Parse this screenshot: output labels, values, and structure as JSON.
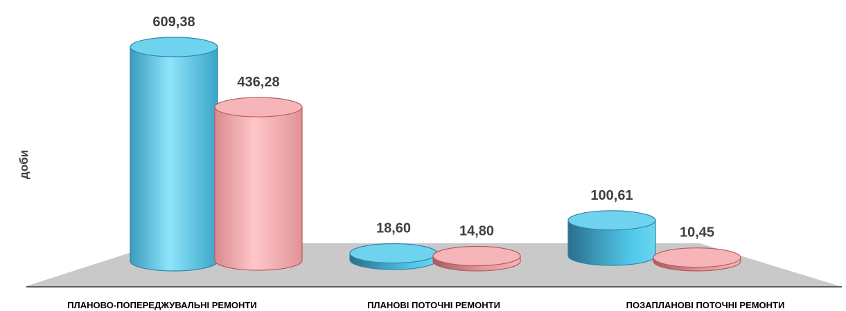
{
  "chart_data": {
    "type": "bar",
    "style": "3d-cylinder",
    "ylabel": "доби",
    "categories": [
      "ПЛАНОВО-ПОПЕРЕДЖУВАЛЬНІ РЕМОНТИ",
      "ПЛАНОВІ ПОТОЧНІ РЕМОНТИ",
      "ПОЗАПЛАНОВІ ПОТОЧНІ РЕМОНТИ"
    ],
    "series": [
      {
        "values": [
          609.38,
          18.6,
          100.61
        ],
        "labels": [
          "609,38",
          "18,60",
          "100,61"
        ],
        "color": "#5bc8e8"
      },
      {
        "values": [
          436.28,
          14.8,
          10.45
        ],
        "labels": [
          "436,28",
          "14,80",
          "10,45"
        ],
        "color": "#f0a0a4"
      }
    ],
    "grid": false,
    "legend": "none"
  }
}
